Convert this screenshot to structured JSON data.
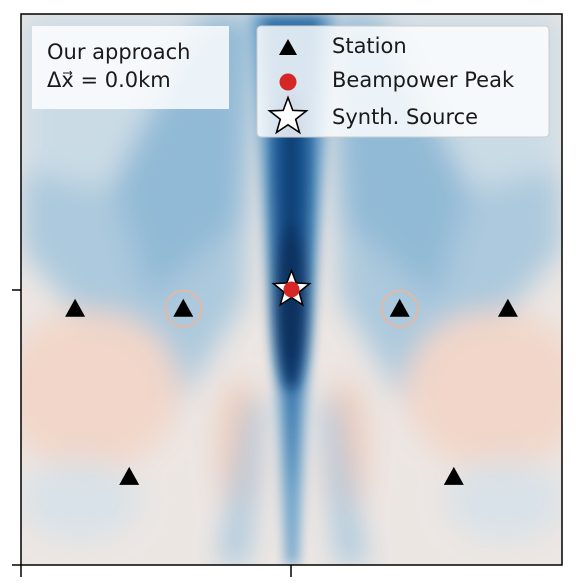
{
  "chart_data": {
    "type": "heatmap",
    "title": "",
    "xlabel": "",
    "ylabel": "",
    "xlim": [
      -1,
      1
    ],
    "ylim": [
      -1,
      1
    ],
    "colormap": "RdBu (diverging, blue = high beampower)",
    "annotation": {
      "line1": "Our approach",
      "line2": "Δx⃗ = 0.0km"
    },
    "legend": {
      "placement": "top-right",
      "entries": [
        {
          "label": "Station",
          "marker": "triangle",
          "color": "#000000"
        },
        {
          "label": "Beampower Peak",
          "marker": "circle",
          "color": "#d62728"
        },
        {
          "label": "Synth. Source",
          "marker": "star",
          "color": "#ffffff"
        }
      ]
    },
    "stations": [
      {
        "x": -0.8,
        "y": -0.07
      },
      {
        "x": -0.4,
        "y": -0.07
      },
      {
        "x": 0.4,
        "y": -0.07
      },
      {
        "x": 0.8,
        "y": -0.07
      },
      {
        "x": -0.6,
        "y": -0.68
      },
      {
        "x": 0.6,
        "y": -0.68
      }
    ],
    "ringed_stations": [
      1,
      2
    ],
    "synthetic_source": {
      "x": 0.0,
      "y": 0.0
    },
    "beampower_peak": {
      "x": 0.0,
      "y": 0.0
    }
  }
}
